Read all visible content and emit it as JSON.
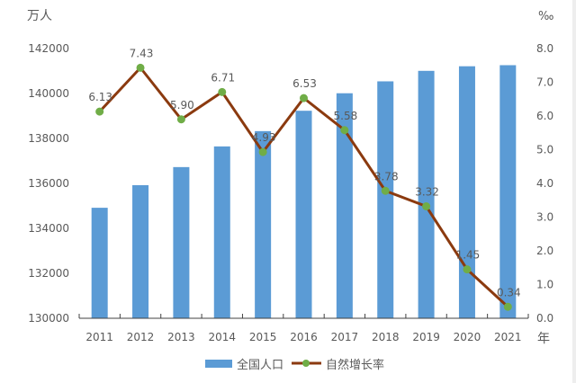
{
  "chart_data": {
    "type": "bar+line",
    "categories": [
      "2011",
      "2012",
      "2013",
      "2014",
      "2015",
      "2016",
      "2017",
      "2018",
      "2019",
      "2020",
      "2021"
    ],
    "series": [
      {
        "name": "全国人口",
        "type": "bar",
        "axis": "left",
        "color": "#5b9bd5",
        "values": [
          134916,
          135922,
          136726,
          137646,
          138326,
          139232,
          140011,
          140541,
          141008,
          141212,
          141260
        ]
      },
      {
        "name": "自然增长率",
        "type": "line",
        "axis": "right",
        "color": "#8b3a0f",
        "marker_color": "#70ad47",
        "values": [
          6.13,
          7.43,
          5.9,
          6.71,
          4.93,
          6.53,
          5.58,
          3.78,
          3.32,
          1.45,
          0.34
        ],
        "labels": [
          "6.13",
          "7.43",
          "5.90",
          "6.71",
          "4.93",
          "6.53",
          "5.58",
          "3.78",
          "3.32",
          "1.45",
          "0.34"
        ]
      }
    ],
    "y_left": {
      "label": "万人",
      "range": [
        130000,
        142000
      ],
      "ticks": [
        "130000",
        "132000",
        "134000",
        "136000",
        "138000",
        "140000",
        "142000"
      ]
    },
    "y_right": {
      "label": "‰",
      "range": [
        0,
        8
      ],
      "ticks": [
        "0.0",
        "1.0",
        "2.0",
        "3.0",
        "4.0",
        "5.0",
        "6.0",
        "7.0",
        "8.0"
      ]
    },
    "xlabel": "年",
    "grid": false,
    "legend": "bottom"
  }
}
